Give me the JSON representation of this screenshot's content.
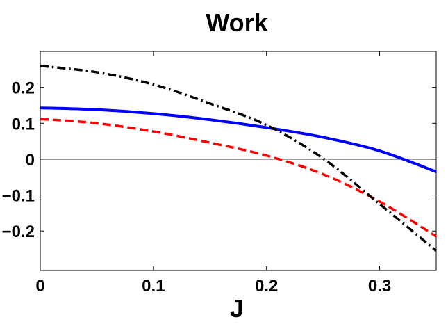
{
  "chart_data": {
    "type": "line",
    "title": "Work",
    "xlabel": "J",
    "ylabel": "",
    "xlim": [
      0,
      0.35
    ],
    "ylim": [
      -0.31,
      0.3
    ],
    "xticks": [
      0,
      0.1,
      0.2,
      0.3
    ],
    "xtick_labels": [
      "0",
      "0.1",
      "0.2",
      "0.3"
    ],
    "yticks": [
      -0.2,
      -0.1,
      0,
      0.1,
      0.2
    ],
    "ytick_labels": [
      "−0.2",
      "−0.1",
      "0",
      "0.1",
      "0.2"
    ],
    "grid": false,
    "legend": "none",
    "zero_line": true,
    "series": [
      {
        "color": "#0000ff",
        "style": "solid",
        "x": [
          0,
          0.05,
          0.1,
          0.15,
          0.2,
          0.25,
          0.3,
          0.35
        ],
        "y": [
          0.143,
          0.138,
          0.127,
          0.11,
          0.088,
          0.061,
          0.023,
          -0.035
        ]
      },
      {
        "color": "#ff0000",
        "style": "dashed",
        "x": [
          0,
          0.05,
          0.1,
          0.15,
          0.2,
          0.25,
          0.3,
          0.35
        ],
        "y": [
          0.112,
          0.1,
          0.077,
          0.046,
          0.01,
          -0.042,
          -0.118,
          -0.215
        ]
      },
      {
        "color": "#000000",
        "style": "dashdot",
        "x": [
          0,
          0.05,
          0.1,
          0.15,
          0.2,
          0.25,
          0.3,
          0.35
        ],
        "y": [
          0.26,
          0.242,
          0.208,
          0.155,
          0.095,
          0.002,
          -0.125,
          -0.255
        ]
      }
    ]
  }
}
